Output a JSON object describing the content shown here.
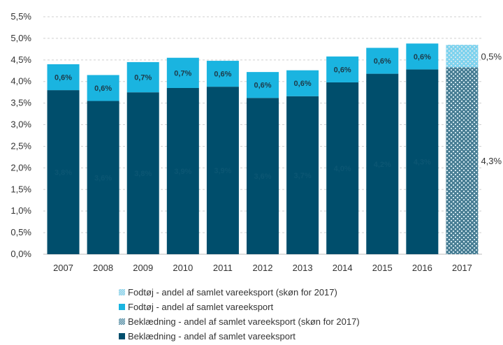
{
  "chart_data": {
    "type": "bar",
    "stacked": true,
    "categories": [
      "2007",
      "2008",
      "2009",
      "2010",
      "2011",
      "2012",
      "2013",
      "2014",
      "2015",
      "2016",
      "2017"
    ],
    "series": [
      {
        "name": "Beklædning - andel af samlet vareeksport",
        "values": [
          3.8,
          3.55,
          3.75,
          3.85,
          3.88,
          3.62,
          3.66,
          3.98,
          4.18,
          4.28,
          null
        ],
        "color": "#004e6c",
        "labels": [
          "3,8%",
          "3,6%",
          "3,8%",
          "3,9%",
          "3,9%",
          "3,6%",
          "3,7%",
          "4,0%",
          "4,2%",
          "4,3%",
          ""
        ]
      },
      {
        "name": "Fodtøj - andel af samlet vareeksport",
        "values": [
          0.6,
          0.6,
          0.7,
          0.7,
          0.6,
          0.6,
          0.6,
          0.6,
          0.6,
          0.6,
          null
        ],
        "color": "#1ab4e0",
        "labels": [
          "0,6%",
          "0,6%",
          "0,7%",
          "0,7%",
          "0,6%",
          "0,6%",
          "0,6%",
          "0,6%",
          "0,6%",
          "0,6%",
          ""
        ]
      },
      {
        "name": "Beklædning - andel af samlet vareeksport (skøn for 2017)",
        "values": [
          null,
          null,
          null,
          null,
          null,
          null,
          null,
          null,
          null,
          null,
          4.33
        ],
        "color": "#4a7f95",
        "pattern": true,
        "labels": [
          "",
          "",
          "",
          "",
          "",
          "",
          "",
          "",
          "",
          "",
          "4,3%"
        ]
      },
      {
        "name": "Fodtøj - andel af samlet vareeksport (skøn for 2017)",
        "values": [
          null,
          null,
          null,
          null,
          null,
          null,
          null,
          null,
          null,
          null,
          0.52
        ],
        "color": "#7fd3ee",
        "pattern": true,
        "labels": [
          "",
          "",
          "",
          "",
          "",
          "",
          "",
          "",
          "",
          "",
          "0,5%"
        ]
      }
    ],
    "legend_order": [
      3,
      1,
      2,
      0
    ],
    "legend_position": "bottom",
    "ylim": [
      0,
      5.5
    ],
    "yticks": [
      "0,0%",
      "0,5%",
      "1,0%",
      "1,5%",
      "2,0%",
      "2,5%",
      "3,0%",
      "3,5%",
      "4,0%",
      "4,5%",
      "5,0%",
      "5,5%"
    ],
    "grid": true,
    "title": "",
    "xlabel": "",
    "ylabel": ""
  }
}
